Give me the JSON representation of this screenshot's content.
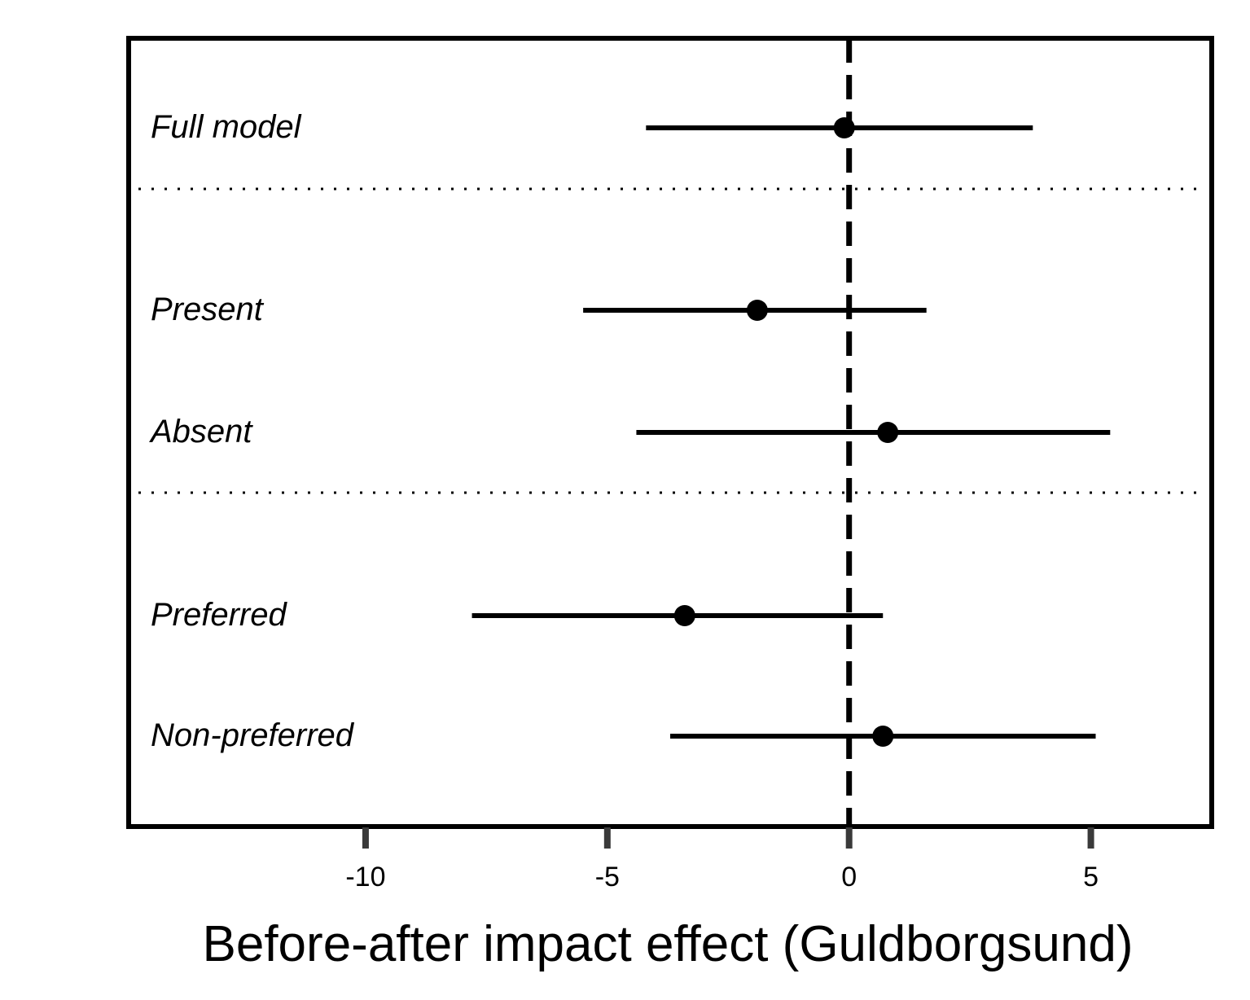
{
  "chart_data": {
    "type": "forest",
    "xlabel": "Before-after impact effect (Guldborgsund)",
    "xlim": [
      -14.9,
      7.5
    ],
    "xticks": [
      -10,
      -5,
      0,
      5
    ],
    "xtick_labels": [
      "-10",
      "-5",
      "0",
      "5"
    ],
    "reference_line": 0,
    "rows": [
      {
        "label": "Full model",
        "estimate": -0.1,
        "lower": -4.2,
        "upper": 3.8
      },
      {
        "label": "Present",
        "estimate": -1.9,
        "lower": -5.5,
        "upper": 1.6
      },
      {
        "label": "Absent",
        "estimate": 0.8,
        "lower": -4.4,
        "upper": 5.4
      },
      {
        "label": "Preferred",
        "estimate": -3.4,
        "lower": -7.8,
        "upper": 0.7
      },
      {
        "label": "Non-preferred",
        "estimate": 0.7,
        "lower": -3.7,
        "upper": 5.1
      }
    ],
    "group_separators_after_rows": [
      0,
      2
    ],
    "grid": false,
    "legend": "none"
  }
}
